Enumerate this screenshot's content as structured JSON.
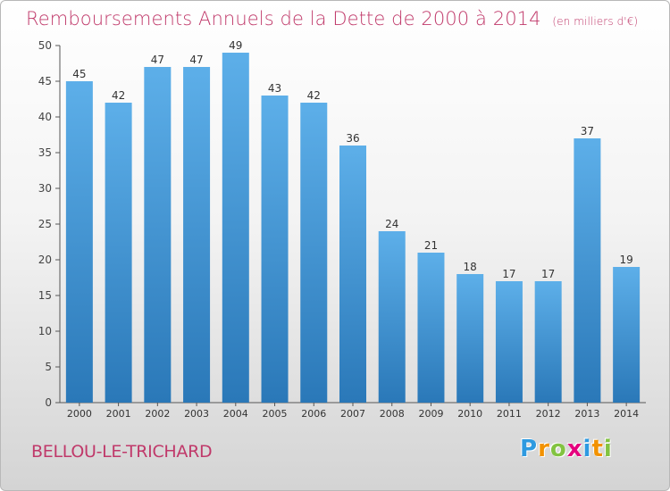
{
  "header": {
    "title": "Remboursements Annuels de la Dette de 2000 à 2014",
    "unit": "(en milliers d'€)"
  },
  "footer": {
    "town": "BELLOU-LE-TRICHARD",
    "logo_letters": [
      "P",
      "r",
      "o",
      "x",
      "i",
      "t",
      "i"
    ],
    "logo_colors": [
      "#2e9ae0",
      "#f29200",
      "#82c341",
      "#e5007e",
      "#2e9ae0",
      "#f29200",
      "#82c341"
    ]
  },
  "colors": {
    "title": "#c0396a",
    "bar_light": "#5dafe9",
    "bar_dark": "#2a78b8",
    "axis": "#555555"
  },
  "chart_data": {
    "type": "bar",
    "title": "Remboursements Annuels de la Dette de 2000 à 2014",
    "subtitle": "(en milliers d'€)",
    "categories": [
      "2000",
      "2001",
      "2002",
      "2003",
      "2004",
      "2005",
      "2006",
      "2007",
      "2008",
      "2009",
      "2010",
      "2011",
      "2012",
      "2013",
      "2014"
    ],
    "values": [
      45,
      42,
      47,
      47,
      49,
      43,
      42,
      36,
      24,
      21,
      18,
      17,
      17,
      37,
      19
    ],
    "ylim": [
      0,
      50
    ],
    "yticks": [
      0,
      5,
      10,
      15,
      20,
      25,
      30,
      35,
      40,
      45,
      50
    ],
    "grid": false,
    "data_labels": true
  }
}
